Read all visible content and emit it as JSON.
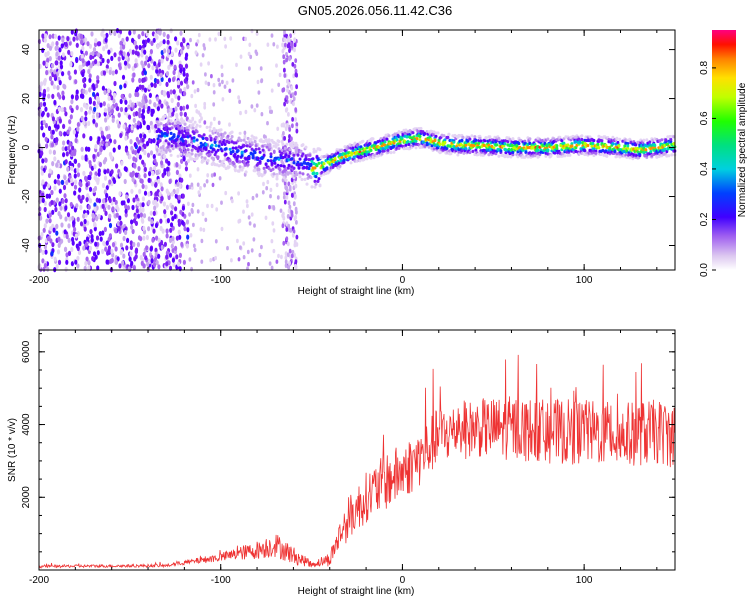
{
  "title": "GN05.2026.056.11.42.C36",
  "chart_data": [
    {
      "type": "heatmap",
      "xlabel": "Height of straight line (km)",
      "ylabel": "Frequency (Hz)",
      "xlim": [
        -200,
        150
      ],
      "ylim": [
        -50,
        48
      ],
      "xticks": [
        -200,
        -100,
        0,
        100
      ],
      "xtick_labels": [
        "-200",
        "-100",
        "0",
        "100"
      ],
      "yticks": [
        -40,
        -20,
        0,
        20,
        40
      ],
      "ytick_labels": [
        "-40",
        "-20",
        "0",
        "20",
        "40"
      ],
      "ridge": {
        "x": [
          -130,
          -110,
          -90,
          -70,
          -55,
          -48,
          -40,
          -30,
          -20,
          -10,
          0,
          10,
          20,
          30,
          40,
          60,
          80,
          100,
          120,
          130,
          150
        ],
        "y": [
          5,
          2,
          -2,
          -5,
          -6,
          -9,
          -6,
          -3,
          -1,
          1,
          3,
          4,
          2,
          1,
          1,
          0,
          0,
          1,
          0,
          -1,
          1
        ]
      },
      "colorbar": {
        "label": "Normalized spectral amplitude",
        "range": [
          0,
          0.95
        ],
        "ticks": [
          0.0,
          0.2,
          0.4,
          0.6,
          0.8
        ],
        "tick_labels": [
          "0.0",
          "0.2",
          "0.4",
          "0.6",
          "0.8"
        ]
      }
    },
    {
      "type": "line",
      "xlabel": "Height of straight line (km)",
      "ylabel": "SNR (10 * v/v)",
      "xlim": [
        -200,
        150
      ],
      "ylim": [
        0,
        6600
      ],
      "xticks": [
        -200,
        -100,
        0,
        100
      ],
      "xtick_labels": [
        "-200",
        "-100",
        "0",
        "100"
      ],
      "yticks": [
        2000,
        4000,
        6000
      ],
      "ytick_labels": [
        "2000",
        "4000",
        "6000"
      ],
      "series": [
        {
          "name": "SNR",
          "color": "#ee3333",
          "envelope_x": [
            -200,
            -130,
            -120,
            -100,
            -80,
            -70,
            -60,
            -50,
            -40,
            -35,
            -30,
            -20,
            -10,
            0,
            10,
            20,
            40,
            60,
            80,
            100,
            120,
            140,
            150
          ],
          "envelope_y": [
            100,
            120,
            200,
            350,
            550,
            700,
            400,
            150,
            300,
            900,
            1400,
            2000,
            2400,
            2700,
            3100,
            3700,
            3900,
            3900,
            3800,
            3800,
            3700,
            3800,
            3700
          ],
          "amplitude": [
            40,
            40,
            60,
            120,
            250,
            350,
            250,
            80,
            200,
            400,
            600,
            700,
            800,
            800,
            800,
            800,
            800,
            900,
            900,
            900,
            900,
            900,
            900
          ]
        }
      ]
    }
  ],
  "colors": {
    "line": "#ee3333",
    "frame": "#000000"
  }
}
